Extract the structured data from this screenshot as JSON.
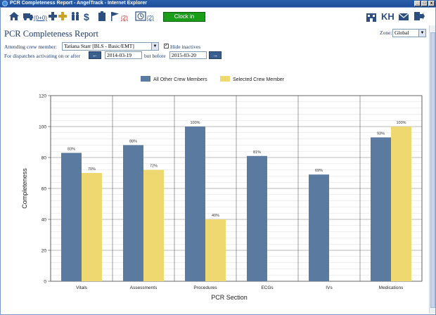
{
  "window": {
    "title": "PCR Completeness Report - AngelTrack - Internet Explorer"
  },
  "toolbar": {
    "vehicles_link": "(0+0)",
    "flags_link": "(2)",
    "clock_link": "(2)",
    "clock_in_label": "Clock in",
    "kh_label": "KH"
  },
  "page": {
    "title": "PCR Completeness Report"
  },
  "zone": {
    "label": "Zone:",
    "value": "Global"
  },
  "filters": {
    "crew_label": "Attending crew member:",
    "crew_value": "Tatiana Starr [BLS - Basic/EMT]",
    "hide_inactives_label": "Hide inactives",
    "hide_inactives_checked": true,
    "dispatch_label": "For dispatches activating on or after",
    "start_date": "2014-03-19",
    "but_before_label": "but before",
    "end_date": "2015-03-20",
    "prev_arrow": "←",
    "next_arrow": "→"
  },
  "colors": {
    "other": "#5b7a9f",
    "selected": "#efd870",
    "title": "#1e3a6e"
  },
  "chart_data": {
    "type": "bar",
    "categories": [
      "Vitals",
      "Assessments",
      "Procedures",
      "ECGs",
      "IVs",
      "Medications"
    ],
    "series": [
      {
        "name": "All Other Crew Members",
        "values": [
          83,
          88,
          100,
          81,
          69,
          93
        ],
        "labels": [
          "83%",
          "88%",
          "100%",
          "81%",
          "69%",
          "93%"
        ]
      },
      {
        "name": "Selected Crew Member",
        "values": [
          70,
          72,
          40,
          null,
          null,
          100
        ],
        "labels": [
          "70%",
          "72%",
          "40%",
          "",
          "",
          "100%"
        ]
      }
    ],
    "xlabel": "PCR Section",
    "ylabel": "Completeness",
    "ylim": [
      0,
      120
    ],
    "yticks": [
      "0",
      "20",
      "40",
      "60",
      "80",
      "100",
      "120"
    ],
    "grid": true,
    "legend": "top-center"
  }
}
